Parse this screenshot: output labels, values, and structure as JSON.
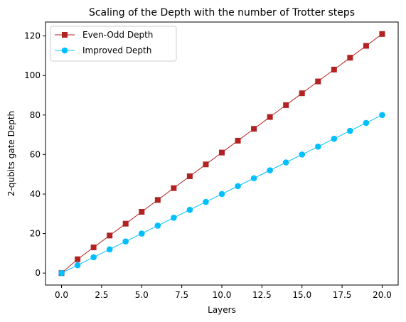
{
  "chart_data": {
    "type": "line",
    "title": "Scaling of the Depth with the number of Trotter steps",
    "xlabel": "Layers",
    "ylabel": "2-qubits gate Depth",
    "xlim": [
      -1,
      21
    ],
    "ylim": [
      -6.05,
      127.05
    ],
    "xticks": [
      0.0,
      2.5,
      5.0,
      7.5,
      10.0,
      12.5,
      15.0,
      17.5,
      20.0
    ],
    "xtick_labels": [
      "0.0",
      "2.5",
      "5.0",
      "7.5",
      "10.0",
      "12.5",
      "15.0",
      "17.5",
      "20.0"
    ],
    "yticks": [
      0,
      20,
      40,
      60,
      80,
      100,
      120
    ],
    "ytick_labels": [
      "0",
      "20",
      "40",
      "60",
      "80",
      "100",
      "120"
    ],
    "grid": false,
    "legend_position": "top-left",
    "x": [
      0,
      1,
      2,
      3,
      4,
      5,
      6,
      7,
      8,
      9,
      10,
      11,
      12,
      13,
      14,
      15,
      16,
      17,
      18,
      19,
      20
    ],
    "series": [
      {
        "name": "Even-Odd Depth",
        "color": "#b22222",
        "marker": "square",
        "values": [
          0,
          7,
          13,
          19,
          25,
          31,
          37,
          43,
          49,
          55,
          61,
          67,
          73,
          79,
          85,
          91,
          97,
          103,
          109,
          115,
          121
        ]
      },
      {
        "name": "Improved Depth",
        "color": "#00bfff",
        "marker": "circle",
        "values": [
          0,
          4,
          8,
          12,
          16,
          20,
          24,
          28,
          32,
          36,
          40,
          44,
          48,
          52,
          56,
          60,
          64,
          68,
          72,
          76,
          80
        ]
      }
    ]
  }
}
